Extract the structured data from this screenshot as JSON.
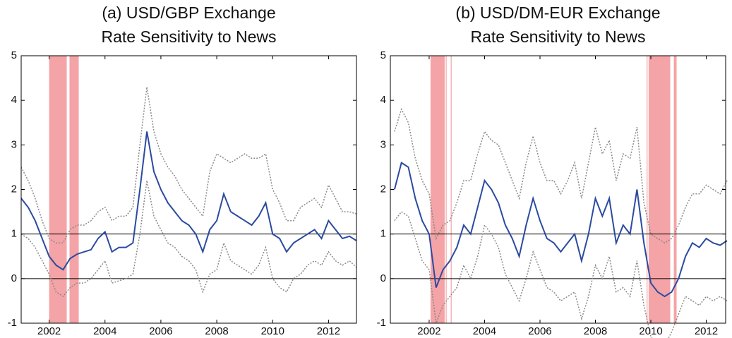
{
  "chart_data": [
    {
      "type": "line",
      "title": [
        "(a) USD/GBP Exchange",
        "Rate Sensitivity to News"
      ],
      "x": [
        2001,
        2001.25,
        2001.5,
        2001.75,
        2002,
        2002.25,
        2002.5,
        2002.75,
        2003,
        2003.25,
        2003.5,
        2003.75,
        2004,
        2004.25,
        2004.5,
        2004.75,
        2005,
        2005.25,
        2005.5,
        2005.75,
        2006,
        2006.25,
        2006.5,
        2006.75,
        2007,
        2007.25,
        2007.5,
        2007.75,
        2008,
        2008.25,
        2008.5,
        2008.75,
        2009,
        2009.25,
        2009.5,
        2009.75,
        2010,
        2010.25,
        2010.5,
        2010.75,
        2011,
        2011.25,
        2011.5,
        2011.75,
        2012,
        2012.25,
        2012.5,
        2012.75,
        2013
      ],
      "series": [
        {
          "color": "#8a8a8a",
          "dash": true,
          "values": [
            2.5,
            2.2,
            1.8,
            1.3,
            0.9,
            0.8,
            0.8,
            1.1,
            1.2,
            1.2,
            1.3,
            1.5,
            1.6,
            1.3,
            1.4,
            1.4,
            1.6,
            3.0,
            4.3,
            3.3,
            2.8,
            2.5,
            2.3,
            2.0,
            1.8,
            1.6,
            1.4,
            2.4,
            2.8,
            2.7,
            2.6,
            2.7,
            2.8,
            2.7,
            2.7,
            2.8,
            2.0,
            1.7,
            1.3,
            1.3,
            1.6,
            1.7,
            1.8,
            1.6,
            2.1,
            1.8,
            1.5,
            1.5,
            1.45
          ]
        },
        {
          "color": "#8a8a8a",
          "dash": true,
          "values": [
            1.0,
            0.9,
            0.7,
            0.4,
            0.1,
            -0.3,
            -0.4,
            -0.2,
            -0.1,
            -0.1,
            0.0,
            0.2,
            0.4,
            -0.1,
            -0.05,
            0.0,
            0.1,
            1.0,
            2.2,
            1.4,
            1.1,
            0.8,
            0.7,
            0.5,
            0.4,
            0.2,
            -0.3,
            0.1,
            0.2,
            0.8,
            0.4,
            0.3,
            0.2,
            0.1,
            0.3,
            0.7,
            0.0,
            -0.2,
            -0.3,
            0.0,
            0.1,
            0.3,
            0.4,
            0.3,
            0.6,
            0.4,
            0.3,
            0.4,
            0.25
          ]
        },
        {
          "color": "#2b4ba0",
          "dash": false,
          "values": [
            1.8,
            1.6,
            1.3,
            0.9,
            0.5,
            0.3,
            0.2,
            0.45,
            0.55,
            0.6,
            0.65,
            0.9,
            1.05,
            0.6,
            0.7,
            0.7,
            0.8,
            2.0,
            3.3,
            2.4,
            2.0,
            1.7,
            1.5,
            1.3,
            1.2,
            1.0,
            0.6,
            1.1,
            1.3,
            1.9,
            1.5,
            1.4,
            1.3,
            1.2,
            1.4,
            1.7,
            1.0,
            0.9,
            0.6,
            0.8,
            0.9,
            1.0,
            1.1,
            0.9,
            1.3,
            1.1,
            0.9,
            0.95,
            0.85
          ]
        }
      ],
      "shaded": [
        [
          2002.0,
          2002.63
        ],
        [
          2002.73,
          2003.06
        ]
      ],
      "shade_color": "#f4a3a6",
      "hlines": [
        0,
        1
      ],
      "xlim": [
        2001,
        2013
      ],
      "xticks": [
        2002,
        2004,
        2006,
        2008,
        2010,
        2012
      ],
      "ylim": [
        -1,
        5
      ],
      "yticks": [
        -1,
        0,
        1,
        2,
        3,
        4,
        5
      ]
    },
    {
      "type": "line",
      "title": [
        "(b) USD/DM-EUR Exchange",
        "Rate Sensitivity to News"
      ],
      "x": [
        2000.75,
        2001,
        2001.25,
        2001.5,
        2001.75,
        2002,
        2002.25,
        2002.5,
        2002.75,
        2003,
        2003.25,
        2003.5,
        2003.75,
        2004,
        2004.25,
        2004.5,
        2004.75,
        2005,
        2005.25,
        2005.5,
        2005.75,
        2006,
        2006.25,
        2006.5,
        2006.75,
        2007,
        2007.25,
        2007.5,
        2007.75,
        2008,
        2008.25,
        2008.5,
        2008.75,
        2009,
        2009.25,
        2009.5,
        2009.75,
        2010,
        2010.25,
        2010.5,
        2010.75,
        2011,
        2011.25,
        2011.5,
        2011.75,
        2012,
        2012.25,
        2012.5,
        2012.75
      ],
      "series": [
        {
          "color": "#8a8a8a",
          "dash": true,
          "values": [
            3.3,
            3.8,
            3.5,
            2.7,
            2.2,
            1.9,
            0.9,
            1.2,
            1.3,
            1.7,
            2.2,
            2.2,
            2.8,
            3.3,
            3.1,
            3.0,
            2.6,
            2.2,
            1.8,
            2.6,
            3.2,
            2.6,
            2.2,
            2.2,
            1.9,
            2.2,
            2.6,
            1.8,
            2.6,
            3.4,
            2.8,
            3.1,
            2.2,
            2.8,
            2.7,
            3.4,
            1.7,
            1.0,
            0.9,
            0.8,
            0.9,
            1.2,
            1.6,
            1.9,
            1.9,
            2.1,
            2.0,
            1.9,
            2.2
          ]
        },
        {
          "color": "#8a8a8a",
          "dash": true,
          "values": [
            1.3,
            1.5,
            1.4,
            0.9,
            0.4,
            0.2,
            -1.0,
            -0.6,
            -0.4,
            -0.2,
            0.3,
            0.0,
            0.5,
            1.2,
            1.0,
            0.7,
            0.1,
            -0.2,
            -0.5,
            0.0,
            0.6,
            0.2,
            -0.2,
            -0.3,
            -0.5,
            -0.4,
            -0.3,
            -0.9,
            -0.4,
            0.3,
            0.0,
            0.5,
            -0.3,
            -0.2,
            -0.4,
            0.4,
            -0.6,
            -1.3,
            -1.5,
            -1.5,
            -1.2,
            -0.8,
            -0.4,
            -0.5,
            -0.6,
            -0.4,
            -0.5,
            -0.4,
            -0.5
          ]
        },
        {
          "color": "#2b4ba0",
          "dash": false,
          "values": [
            2.0,
            2.6,
            2.5,
            1.8,
            1.3,
            1.0,
            -0.2,
            0.2,
            0.4,
            0.7,
            1.2,
            1.0,
            1.6,
            2.2,
            2.0,
            1.7,
            1.2,
            0.9,
            0.5,
            1.2,
            1.8,
            1.3,
            0.9,
            0.8,
            0.6,
            0.8,
            1.0,
            0.4,
            1.0,
            1.8,
            1.4,
            1.8,
            0.8,
            1.2,
            1.0,
            2.0,
            0.8,
            -0.1,
            -0.3,
            -0.4,
            -0.3,
            0.0,
            0.5,
            0.8,
            0.7,
            0.9,
            0.8,
            0.75,
            0.85
          ]
        }
      ],
      "shaded": [
        [
          2002.05,
          2002.56
        ],
        [
          2002.6,
          2002.63
        ],
        [
          2002.78,
          2002.81
        ],
        [
          2009.85,
          2009.88
        ],
        [
          2009.92,
          2010.7
        ],
        [
          2010.83,
          2010.93
        ]
      ],
      "shade_color": "#f4a3a6",
      "hlines": [
        0,
        1
      ],
      "xlim": [
        2000.6,
        2012.7
      ],
      "xticks": [
        2002,
        2004,
        2006,
        2008,
        2010,
        2012
      ],
      "ylim": [
        -1,
        5
      ],
      "yticks": [
        -1,
        0,
        1,
        2,
        3,
        4,
        5
      ]
    }
  ]
}
